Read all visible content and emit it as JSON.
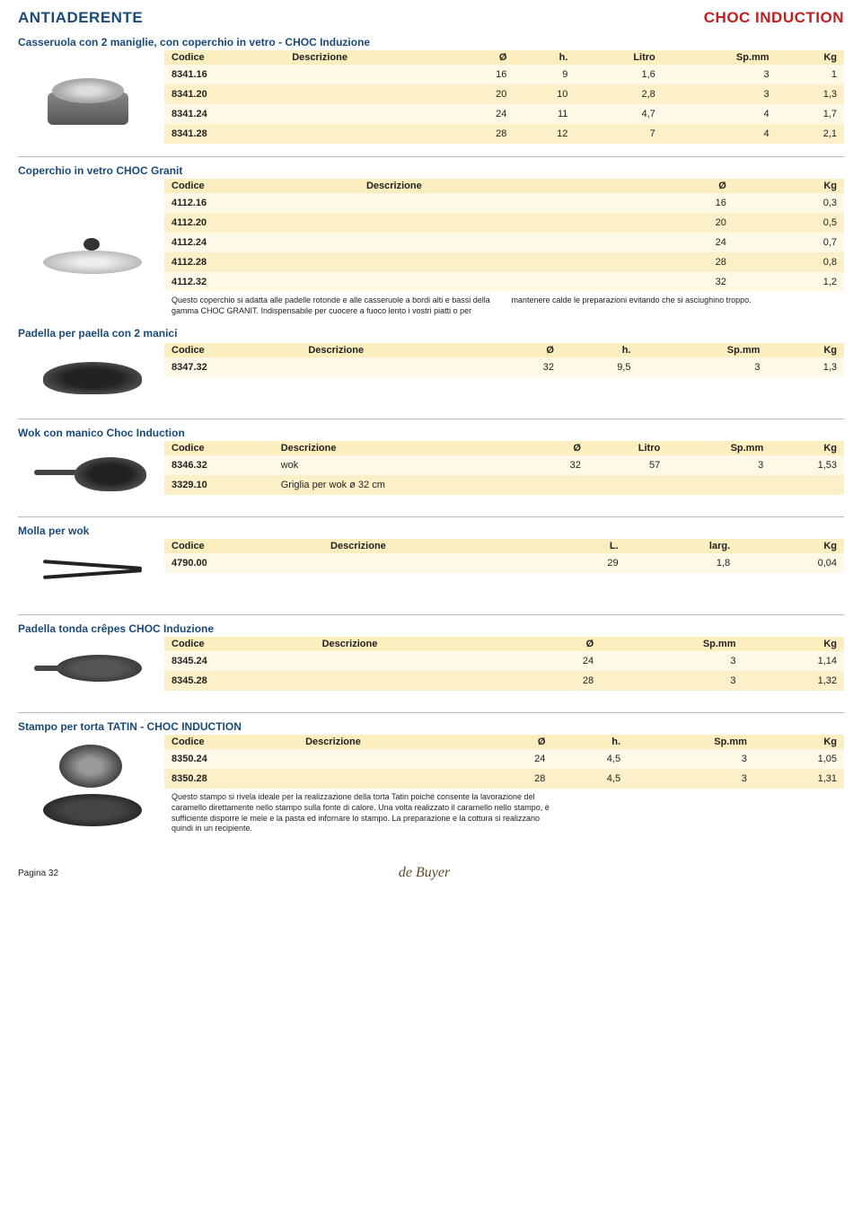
{
  "header": {
    "left": "ANTIADERENTE",
    "right": "CHOC INDUCTION"
  },
  "sections": {
    "casserole": {
      "title": "Casseruola con 2 maniglie, con coperchio in vetro - CHOC Induzione",
      "columns": [
        "Codice",
        "Descrizione",
        "Ø",
        "h.",
        "Litro",
        "Sp.mm",
        "Kg"
      ],
      "rows": [
        [
          "8341.16",
          "",
          "16",
          "9",
          "1,6",
          "3",
          "1"
        ],
        [
          "8341.20",
          "",
          "20",
          "10",
          "2,8",
          "3",
          "1,3"
        ],
        [
          "8341.24",
          "",
          "24",
          "11",
          "4,7",
          "4",
          "1,7"
        ],
        [
          "8341.28",
          "",
          "28",
          "12",
          "7",
          "4",
          "2,1"
        ]
      ]
    },
    "lid": {
      "title": "Coperchio in vetro CHOC Granit",
      "columns": [
        "Codice",
        "Descrizione",
        "Ø",
        "Kg"
      ],
      "rows": [
        [
          "4112.16",
          "",
          "16",
          "0,3"
        ],
        [
          "4112.20",
          "",
          "20",
          "0,5"
        ],
        [
          "4112.24",
          "",
          "24",
          "0,7"
        ],
        [
          "4112.28",
          "",
          "28",
          "0,8"
        ],
        [
          "4112.32",
          "",
          "32",
          "1,2"
        ]
      ],
      "note": "Questo coperchio si adatta alle padelle rotonde e alle casseruole a bordi alti e bassi della gamma CHOC GRANIT. Indispensabile per cuocere a fuoco lento i vostri piatti o per mantenere calde le preparazioni evitando che si asciughino troppo."
    },
    "paella": {
      "title": "Padella per paella con 2 manici",
      "columns": [
        "Codice",
        "Descrizione",
        "Ø",
        "h.",
        "Sp.mm",
        "Kg"
      ],
      "rows": [
        [
          "8347.32",
          "",
          "32",
          "9,5",
          "3",
          "1,3"
        ]
      ]
    },
    "wok": {
      "title": "Wok con manico Choc Induction",
      "columns": [
        "Codice",
        "Descrizione",
        "Ø",
        "Litro",
        "Sp.mm",
        "Kg"
      ],
      "rows": [
        [
          "8346.32",
          "wok",
          "32",
          "57",
          "3",
          "1,53"
        ],
        [
          "3329.10",
          "Griglia per wok ø 32 cm",
          "",
          "",
          "",
          ""
        ]
      ]
    },
    "tongs": {
      "title": "Molla per wok",
      "columns": [
        "Codice",
        "Descrizione",
        "L.",
        "larg.",
        "Kg"
      ],
      "rows": [
        [
          "4790.00",
          "",
          "29",
          "1,8",
          "0,04"
        ]
      ]
    },
    "crepe": {
      "title": "Padella tonda crêpes CHOC Induzione",
      "columns": [
        "Codice",
        "Descrizione",
        "Ø",
        "Sp.mm",
        "Kg"
      ],
      "rows": [
        [
          "8345.24",
          "",
          "24",
          "3",
          "1,14"
        ],
        [
          "8345.28",
          "",
          "28",
          "3",
          "1,32"
        ]
      ]
    },
    "tatin": {
      "title": "Stampo per torta TATIN - CHOC INDUCTION",
      "columns": [
        "Codice",
        "Descrizione",
        "Ø",
        "h.",
        "Sp.mm",
        "Kg"
      ],
      "rows": [
        [
          "8350.24",
          "",
          "24",
          "4,5",
          "3",
          "1,05"
        ],
        [
          "8350.28",
          "",
          "28",
          "4,5",
          "3",
          "1,31"
        ]
      ],
      "note": "Questo stampo si rivela ideale per la realizzazione della torta Tatin poiché consente la lavorazione del caramello direttamente nello stampo sulla fonte di calore. Una volta realizzato il caramello nello stampo, è sufficiente disporre le mele e la pasta ed infornare lo stampo. La preparazione e la cottura si realizzano quindi in un recipiente."
    }
  },
  "footer": {
    "page": "Pagina 32",
    "brand": "de Buyer"
  }
}
